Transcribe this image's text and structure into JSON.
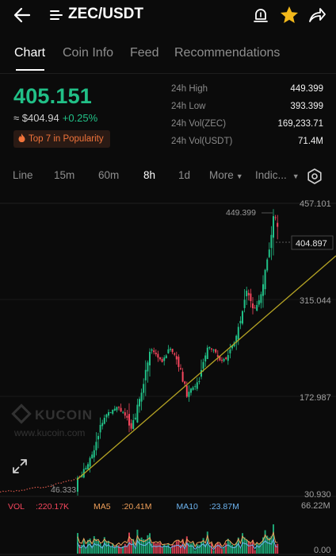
{
  "header": {
    "pair": "ZEC/USDT"
  },
  "tabs": [
    "Chart",
    "Coin Info",
    "Feed",
    "Recommendations"
  ],
  "ticker": {
    "last_price": "405.151",
    "fiat_price": "≈ $404.94",
    "change": "+0.25%",
    "badge": "Top 7 in Popularity"
  },
  "stats": [
    {
      "label": "24h High",
      "value": "449.399"
    },
    {
      "label": "24h Low",
      "value": "393.399"
    },
    {
      "label": "24h Vol(ZEC)",
      "value": "169,233.71"
    },
    {
      "label": "24h Vol(USDT)",
      "value": "71.4M"
    }
  ],
  "intervals": {
    "items": [
      "Line",
      "15m",
      "60m",
      "8h",
      "1d",
      "More",
      "Indic..."
    ],
    "active": "8h"
  },
  "watermark": {
    "brand": "KUCOIN",
    "url": "www.kucoin.com"
  },
  "colors": {
    "up": "#21c087",
    "down": "#f6465d",
    "trendline": "#b5a324",
    "ma5": "#f0a05a",
    "ma10": "#6db4f0",
    "star": "#f2b81b"
  },
  "chart_data": {
    "type": "candlestick",
    "y_axis_labels": [
      "457.101",
      "315.044",
      "172.987",
      "30.930"
    ],
    "price_tag": "404.897",
    "high_marker": "449.399",
    "low_marker": "46.333",
    "ylim": [
      30.93,
      457.101
    ],
    "volume": {
      "legend": [
        {
          "name": "VOL",
          "value": "220.17K"
        },
        {
          "name": "MA5",
          "value": "20.41M"
        },
        {
          "name": "MA10",
          "value": "23.87M"
        }
      ],
      "y_axis_labels": [
        "66.22M",
        "0.00"
      ]
    }
  }
}
